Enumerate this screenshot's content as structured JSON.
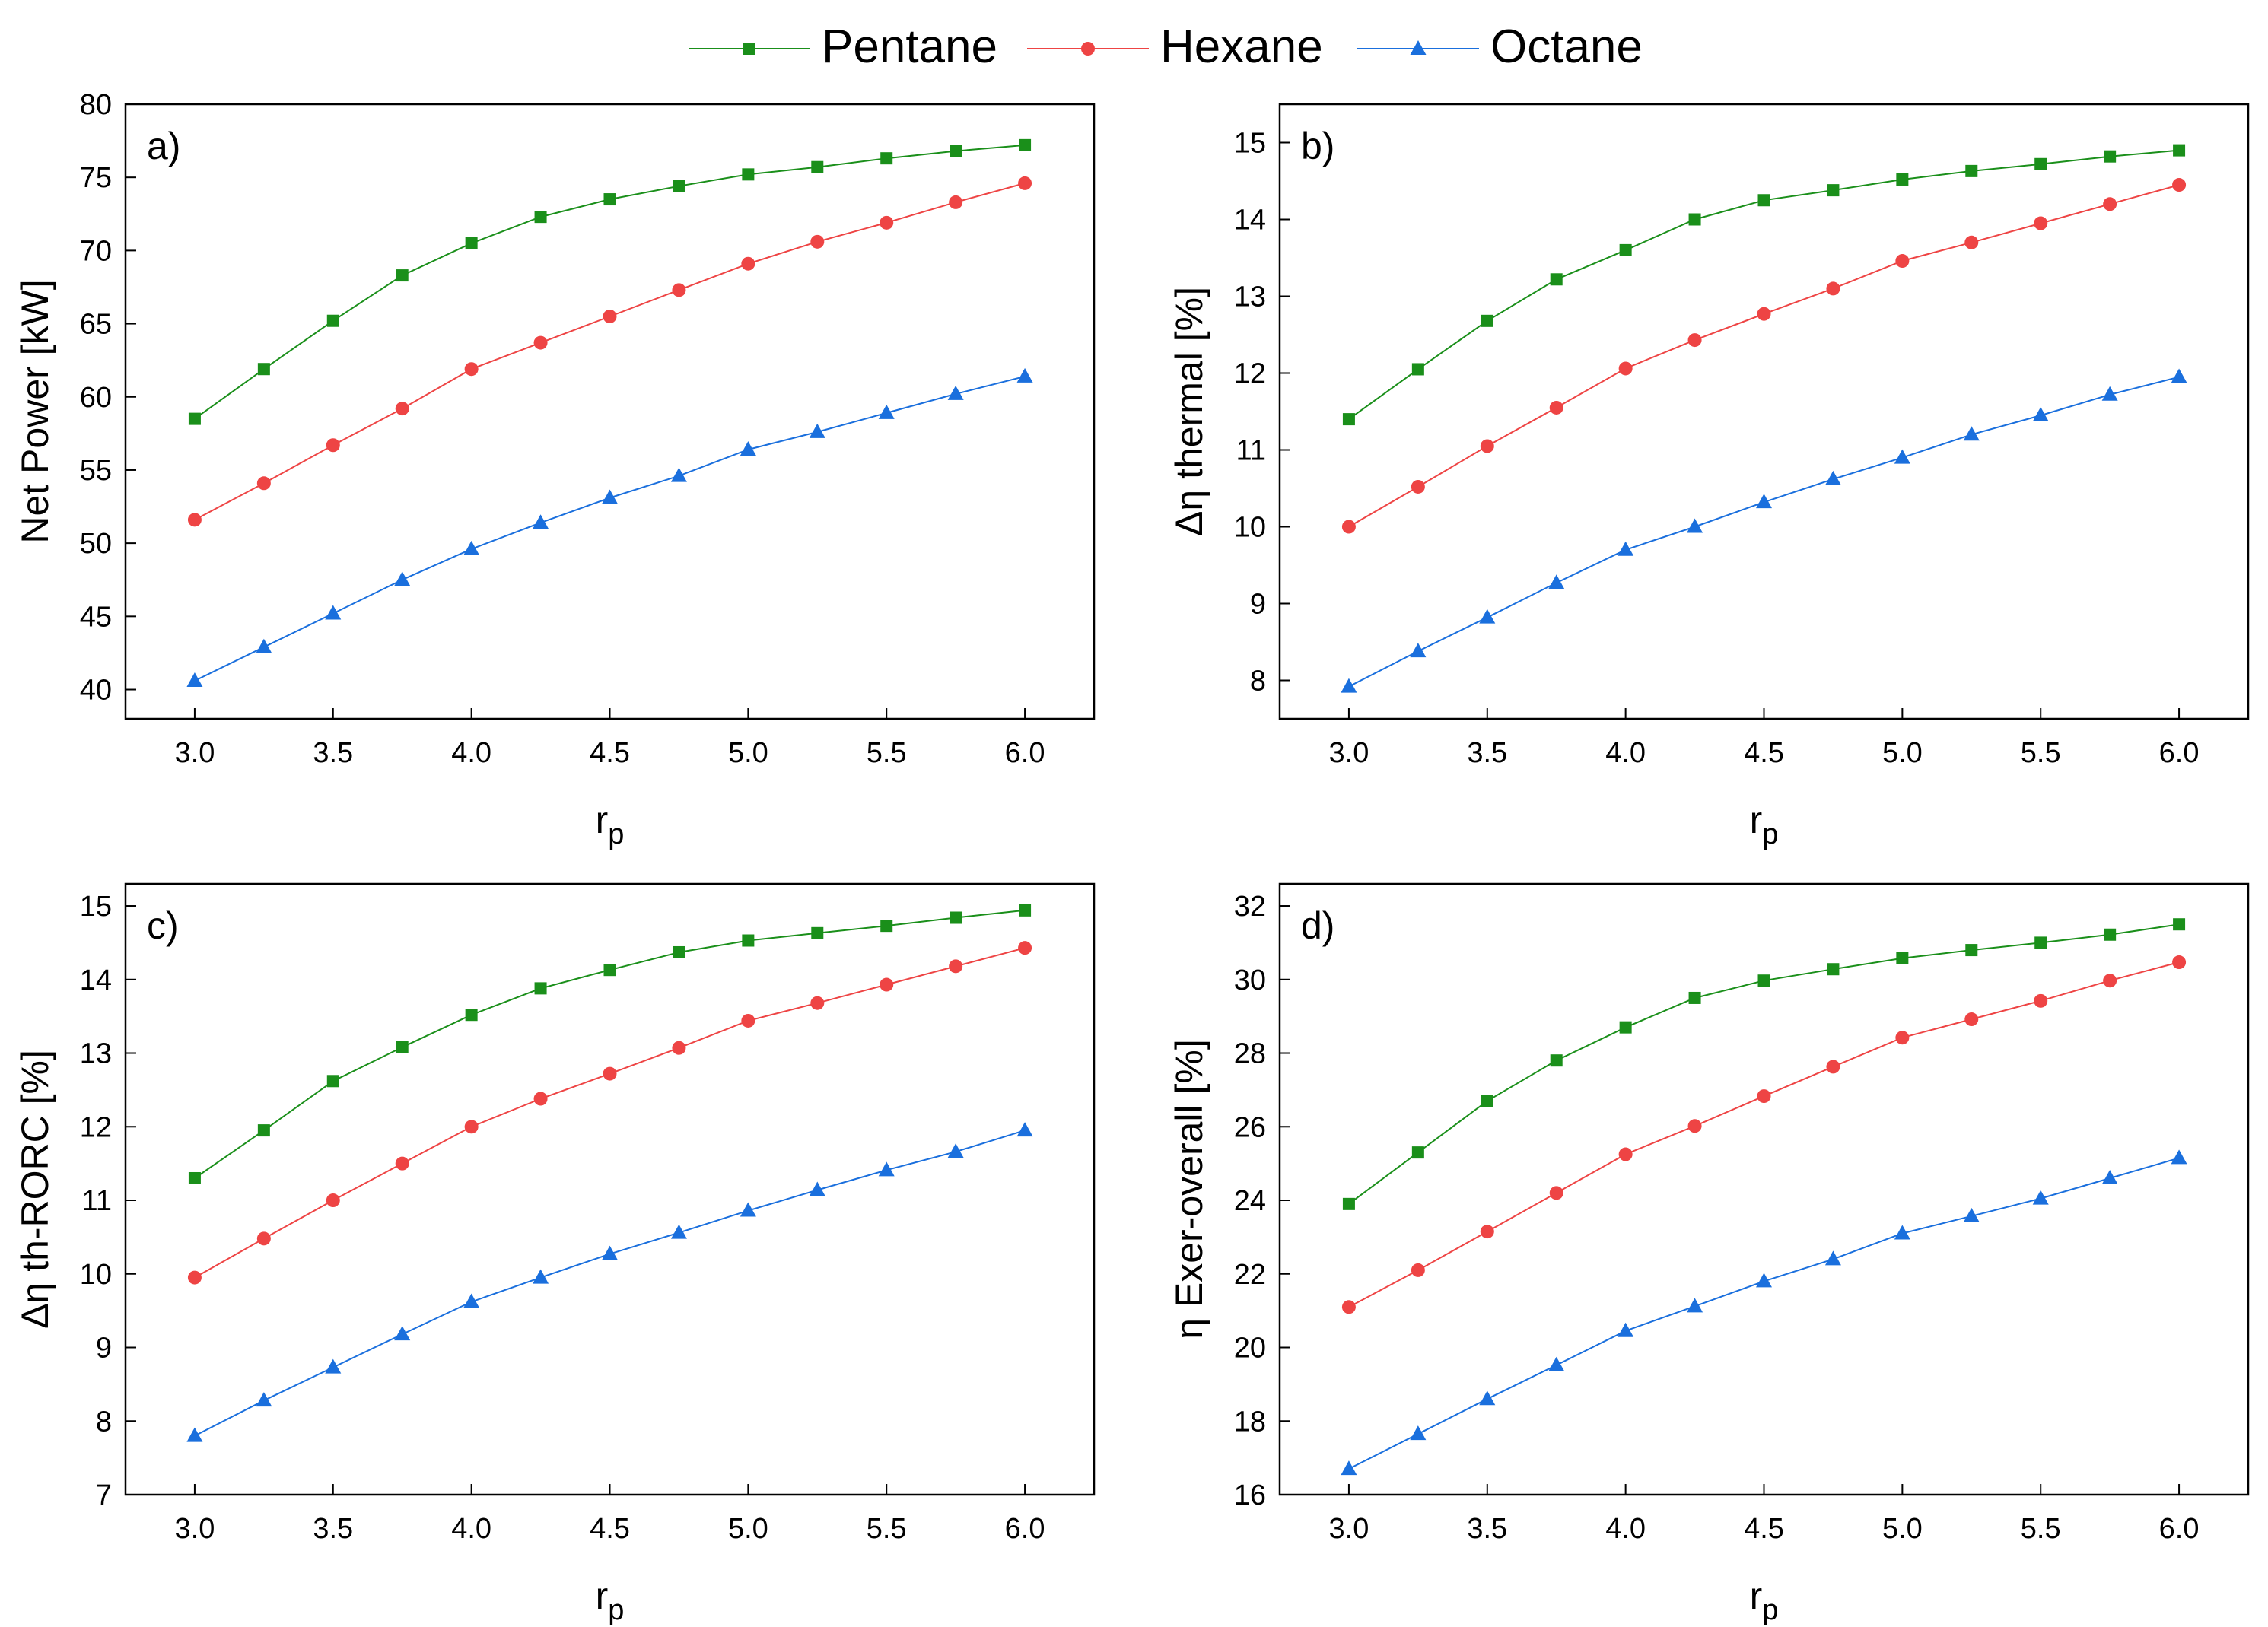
{
  "legend": {
    "placement": "top-center",
    "entries": [
      {
        "label": "Pentane",
        "color": "#1a8f1a",
        "marker": "square"
      },
      {
        "label": "Hexane",
        "color": "#ee4444",
        "marker": "circle"
      },
      {
        "label": "Octane",
        "color": "#1a6fdd",
        "marker": "triangle"
      }
    ]
  },
  "chart_data": [
    {
      "type": "line",
      "panel_label": "a)",
      "xlabel": "r",
      "xlabel_sub": "p",
      "ylabel": "Net Power [kW]",
      "x": [
        3.0,
        3.25,
        3.5,
        3.75,
        4.0,
        4.25,
        4.5,
        4.75,
        5.0,
        5.25,
        5.5,
        5.75,
        6.0
      ],
      "xlim": [
        2.75,
        6.25
      ],
      "xticks": [
        3.0,
        3.5,
        4.0,
        4.5,
        5.0,
        5.5,
        6.0
      ],
      "xtick_labels": [
        "3.0",
        "3.5",
        "4.0",
        "4.5",
        "5.0",
        "5.5",
        "6.0"
      ],
      "ylim": [
        38,
        80
      ],
      "yticks": [
        40,
        45,
        50,
        55,
        60,
        65,
        70,
        75,
        80
      ],
      "ytick_labels": [
        "40",
        "45",
        "50",
        "55",
        "60",
        "65",
        "70",
        "75",
        "80"
      ],
      "series": [
        {
          "name": "Pentane",
          "values": [
            58.5,
            61.9,
            65.2,
            68.3,
            70.5,
            72.3,
            73.5,
            74.4,
            75.2,
            75.7,
            76.3,
            76.8,
            77.2
          ]
        },
        {
          "name": "Hexane",
          "values": [
            51.6,
            54.1,
            56.7,
            59.2,
            61.9,
            63.7,
            65.5,
            67.3,
            69.1,
            70.6,
            71.9,
            73.3,
            74.6
          ]
        },
        {
          "name": "Octane",
          "values": [
            40.6,
            42.9,
            45.2,
            47.5,
            49.6,
            51.4,
            53.1,
            54.6,
            56.4,
            57.6,
            58.9,
            60.2,
            61.4
          ]
        }
      ]
    },
    {
      "type": "line",
      "panel_label": "b)",
      "xlabel": "r",
      "xlabel_sub": "p",
      "ylabel": "Δη thermal [%]",
      "x": [
        3.0,
        3.25,
        3.5,
        3.75,
        4.0,
        4.25,
        4.5,
        4.75,
        5.0,
        5.25,
        5.5,
        5.75,
        6.0
      ],
      "xlim": [
        2.75,
        6.25
      ],
      "xticks": [
        3.0,
        3.5,
        4.0,
        4.5,
        5.0,
        5.5,
        6.0
      ],
      "xtick_labels": [
        "3.0",
        "3.5",
        "4.0",
        "4.5",
        "5.0",
        "5.5",
        "6.0"
      ],
      "ylim": [
        7.5,
        15.5
      ],
      "yticks": [
        8,
        9,
        10,
        11,
        12,
        13,
        14,
        15
      ],
      "ytick_labels": [
        "8",
        "9",
        "10",
        "11",
        "12",
        "13",
        "14",
        "15"
      ],
      "series": [
        {
          "name": "Pentane",
          "values": [
            11.4,
            12.05,
            12.68,
            13.22,
            13.6,
            14.0,
            14.25,
            14.38,
            14.52,
            14.63,
            14.72,
            14.82,
            14.9
          ]
        },
        {
          "name": "Hexane",
          "values": [
            10.0,
            10.52,
            11.05,
            11.55,
            12.06,
            12.43,
            12.77,
            13.1,
            13.46,
            13.7,
            13.95,
            14.2,
            14.45
          ]
        },
        {
          "name": "Octane",
          "values": [
            7.92,
            8.38,
            8.82,
            9.27,
            9.7,
            10.0,
            10.32,
            10.62,
            10.9,
            11.2,
            11.45,
            11.72,
            11.95
          ]
        }
      ]
    },
    {
      "type": "line",
      "panel_label": "c)",
      "xlabel": "r",
      "xlabel_sub": "p",
      "ylabel": "Δη th-RORC [%]",
      "x": [
        3.0,
        3.25,
        3.5,
        3.75,
        4.0,
        4.25,
        4.5,
        4.75,
        5.0,
        5.25,
        5.5,
        5.75,
        6.0
      ],
      "xlim": [
        2.75,
        6.25
      ],
      "xticks": [
        3.0,
        3.5,
        4.0,
        4.5,
        5.0,
        5.5,
        6.0
      ],
      "xtick_labels": [
        "3.0",
        "3.5",
        "4.0",
        "4.5",
        "5.0",
        "5.5",
        "6.0"
      ],
      "ylim": [
        7,
        15.3
      ],
      "yticks": [
        7,
        8,
        9,
        10,
        11,
        12,
        13,
        14,
        15
      ],
      "ytick_labels": [
        "7",
        "8",
        "9",
        "10",
        "11",
        "12",
        "13",
        "14",
        "15"
      ],
      "series": [
        {
          "name": "Pentane",
          "values": [
            11.3,
            11.95,
            12.62,
            13.08,
            13.52,
            13.88,
            14.13,
            14.37,
            14.53,
            14.63,
            14.73,
            14.84,
            14.94
          ]
        },
        {
          "name": "Hexane",
          "values": [
            9.95,
            10.48,
            11.0,
            11.5,
            12.0,
            12.38,
            12.72,
            13.07,
            13.44,
            13.68,
            13.93,
            14.18,
            14.43
          ]
        },
        {
          "name": "Octane",
          "values": [
            7.8,
            8.28,
            8.73,
            9.18,
            9.62,
            9.95,
            10.27,
            10.56,
            10.86,
            11.14,
            11.41,
            11.66,
            11.95
          ]
        }
      ]
    },
    {
      "type": "line",
      "panel_label": "d)",
      "xlabel": "r",
      "xlabel_sub": "p",
      "ylabel": "η Exer-overall [%]",
      "x": [
        3.0,
        3.25,
        3.5,
        3.75,
        4.0,
        4.25,
        4.5,
        4.75,
        5.0,
        5.25,
        5.5,
        5.75,
        6.0
      ],
      "xlim": [
        2.75,
        6.25
      ],
      "xticks": [
        3.0,
        3.5,
        4.0,
        4.5,
        5.0,
        5.5,
        6.0
      ],
      "xtick_labels": [
        "3.0",
        "3.5",
        "4.0",
        "4.5",
        "5.0",
        "5.5",
        "6.0"
      ],
      "ylim": [
        16,
        32.6
      ],
      "yticks": [
        16,
        18,
        20,
        22,
        24,
        26,
        28,
        30,
        32
      ],
      "ytick_labels": [
        "16",
        "18",
        "20",
        "22",
        "24",
        "26",
        "28",
        "30",
        "32"
      ],
      "series": [
        {
          "name": "Pentane",
          "values": [
            23.9,
            25.3,
            26.7,
            27.8,
            28.7,
            29.5,
            29.97,
            30.28,
            30.58,
            30.8,
            31.0,
            31.22,
            31.5
          ]
        },
        {
          "name": "Hexane",
          "values": [
            21.1,
            22.1,
            23.15,
            24.2,
            25.25,
            26.02,
            26.83,
            27.63,
            28.42,
            28.92,
            29.42,
            29.97,
            30.47
          ]
        },
        {
          "name": "Octane",
          "values": [
            16.7,
            17.65,
            18.6,
            19.52,
            20.45,
            21.12,
            21.8,
            22.4,
            23.1,
            23.57,
            24.05,
            24.6,
            25.15
          ]
        }
      ]
    }
  ]
}
